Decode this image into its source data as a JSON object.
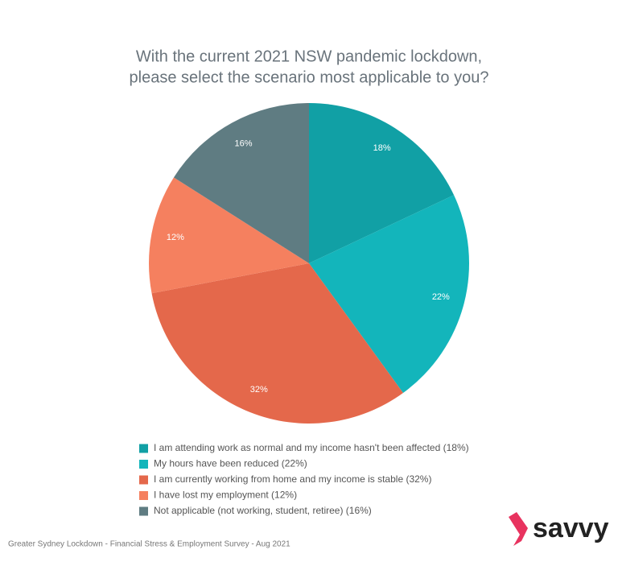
{
  "chart_data": {
    "type": "pie",
    "title": [
      "With the current 2021 NSW pandemic lockdown,",
      "please select the scenario most applicable to you?"
    ],
    "categories": [
      "I am attending work as normal and my income hasn't been affected (18%)",
      "My hours have been reduced (22%)",
      "I am currently working from home and my income is stable (32%)",
      "I have lost my employment (12%)",
      "Not applicable (not working, student, retiree) (16%)"
    ],
    "values": [
      18,
      22,
      32,
      12,
      16
    ],
    "value_labels": [
      "18%",
      "22%",
      "32%",
      "12%",
      "16%"
    ],
    "colors": [
      "#11a0a5",
      "#13b5bb",
      "#e4684b",
      "#f5805f",
      "#5f7c82"
    ],
    "footer": "Greater Sydney Lockdown - Financial Stress & Employment Survey - Aug 2021",
    "logo": "savvy"
  }
}
